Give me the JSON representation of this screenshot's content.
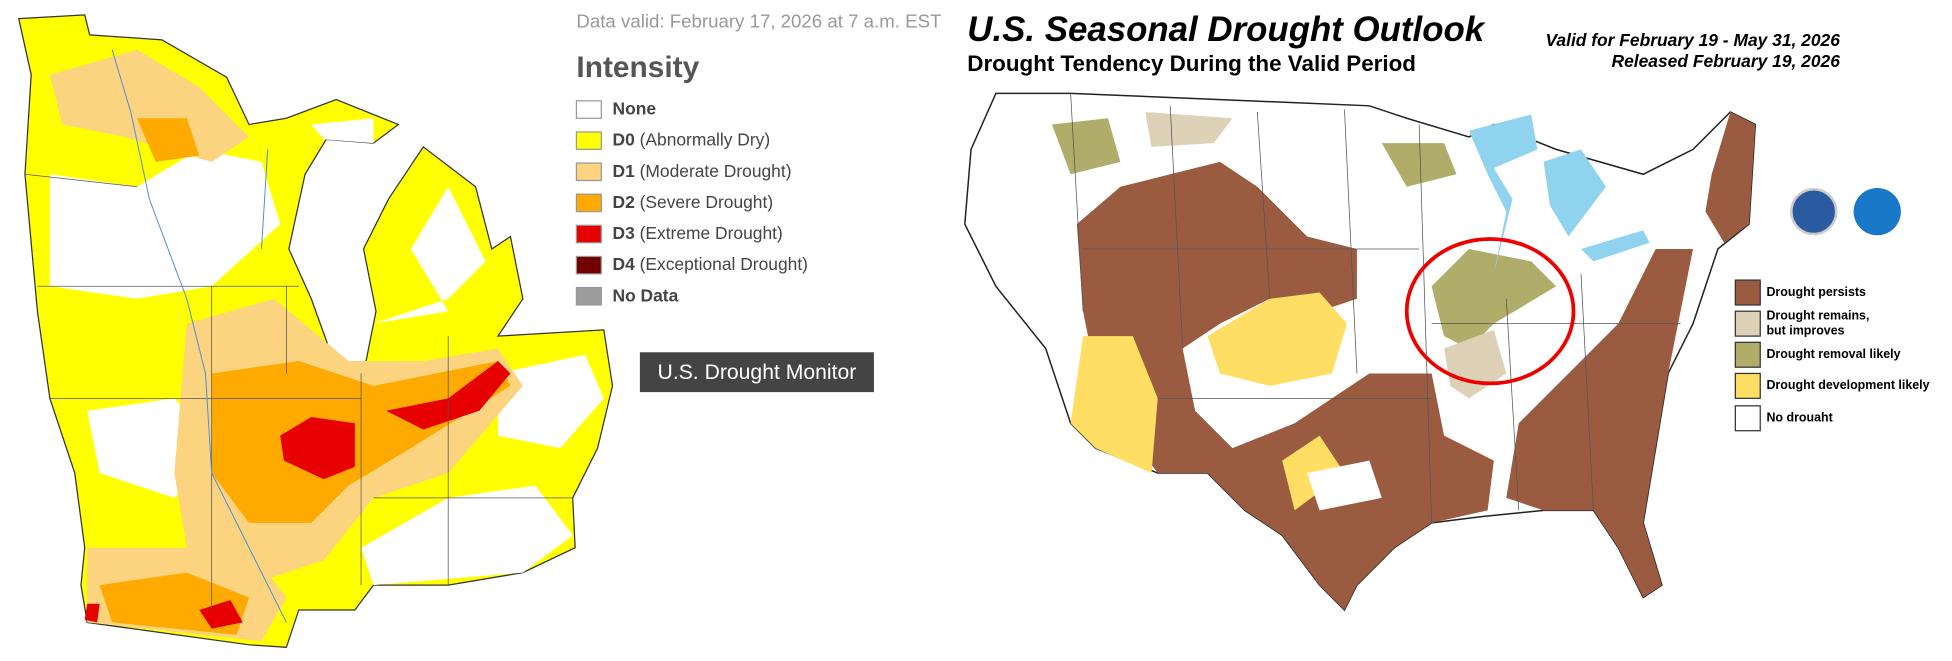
{
  "drought_monitor": {
    "data_valid": "Data valid: February 17, 2026 at 7 a.m. EST",
    "legend_title": "Intensity",
    "legend": [
      {
        "code": "None",
        "color": "#ffffff"
      },
      {
        "code": "D0",
        "label": "(Abnormally Dry)",
        "color": "#ffff00"
      },
      {
        "code": "D1",
        "label": "(Moderate Drought)",
        "color": "#fcd37f"
      },
      {
        "code": "D2",
        "label": "(Severe Drought)",
        "color": "#ffaa00"
      },
      {
        "code": "D3",
        "label": "(Extreme Drought)",
        "color": "#e60000"
      },
      {
        "code": "D4",
        "label": "(Exceptional Drought)",
        "color": "#730000"
      },
      {
        "code": "No Data",
        "color": "#9b9b9b"
      }
    ],
    "badge": "U.S. Drought Monitor"
  },
  "outlook": {
    "title": "U.S. Seasonal Drought Outlook",
    "subtitle": "Drought Tendency During the Valid Period",
    "valid": "Valid for February 19 - May 31, 2026",
    "released": "Released February 19, 2026",
    "legend": [
      {
        "lines": [
          "Drought persists"
        ],
        "color": "#9b5b40"
      },
      {
        "lines": [
          "Drought remains,",
          "but improves"
        ],
        "color": "#ddd1b8"
      },
      {
        "lines": [
          "Drought removal likely"
        ],
        "color": "#b0ad6a"
      },
      {
        "lines": [
          "Drought development likely"
        ],
        "color": "#ffde63"
      },
      {
        "lines": [
          "No drouaht"
        ],
        "color": "#ffffff"
      }
    ]
  }
}
